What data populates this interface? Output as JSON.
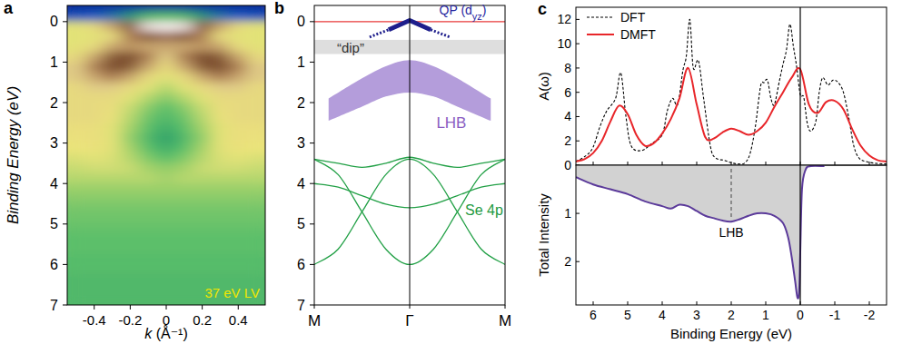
{
  "chart_data": [
    {
      "type": "heatmap",
      "panel_label": "a",
      "annotation": "37 eV LV",
      "xlabel": "k (Å⁻¹)",
      "ylabel": "Binding Energy (eV)",
      "xlim": [
        -0.55,
        0.55
      ],
      "ylim": [
        7,
        -0.4
      ],
      "xticks": [
        -0.4,
        -0.2,
        0,
        0.2,
        0.4
      ],
      "yticks": [
        0,
        1,
        2,
        3,
        4,
        5,
        6,
        7
      ],
      "zlim": [
        0,
        1
      ],
      "x": [
        -0.5,
        -0.4,
        -0.3,
        -0.2,
        -0.1,
        0,
        0.1,
        0.2,
        0.3,
        0.4,
        0.5
      ],
      "y": [
        -0.375,
        -0.125,
        0.125,
        0.375,
        0.625,
        0.875,
        1.125,
        1.375,
        1.625,
        1.875,
        2.125,
        2.375,
        2.625,
        2.875,
        3.125,
        3.375,
        3.625,
        3.875,
        4.125,
        4.375,
        4.625,
        4.875,
        5.125,
        5.375,
        5.625,
        5.875,
        6.125,
        6.375,
        6.625,
        6.875
      ],
      "cells": [
        [
          0.02,
          0.02,
          0.02,
          0.02,
          0.02,
          0.02,
          0.02,
          0.02,
          0.02,
          0.02,
          0.02
        ],
        [
          0.1,
          0.12,
          0.15,
          0.2,
          0.28,
          0.3,
          0.28,
          0.2,
          0.15,
          0.12,
          0.1
        ],
        [
          0.45,
          0.5,
          0.6,
          0.75,
          0.9,
          0.95,
          0.9,
          0.75,
          0.6,
          0.5,
          0.45
        ],
        [
          0.45,
          0.45,
          0.5,
          0.65,
          0.75,
          0.8,
          0.75,
          0.65,
          0.5,
          0.45,
          0.45
        ],
        [
          0.45,
          0.5,
          0.6,
          0.62,
          0.6,
          0.6,
          0.6,
          0.62,
          0.6,
          0.5,
          0.45
        ],
        [
          0.5,
          0.6,
          0.7,
          0.72,
          0.65,
          0.55,
          0.65,
          0.72,
          0.7,
          0.6,
          0.5
        ],
        [
          0.55,
          0.65,
          0.72,
          0.7,
          0.6,
          0.5,
          0.6,
          0.7,
          0.72,
          0.65,
          0.55
        ],
        [
          0.55,
          0.6,
          0.65,
          0.6,
          0.5,
          0.45,
          0.5,
          0.6,
          0.65,
          0.6,
          0.55
        ],
        [
          0.5,
          0.55,
          0.55,
          0.5,
          0.45,
          0.4,
          0.45,
          0.5,
          0.55,
          0.55,
          0.5
        ],
        [
          0.5,
          0.5,
          0.5,
          0.45,
          0.4,
          0.35,
          0.4,
          0.45,
          0.5,
          0.5,
          0.5
        ],
        [
          0.5,
          0.5,
          0.48,
          0.42,
          0.35,
          0.3,
          0.35,
          0.42,
          0.48,
          0.5,
          0.5
        ],
        [
          0.5,
          0.5,
          0.47,
          0.4,
          0.32,
          0.28,
          0.32,
          0.4,
          0.47,
          0.5,
          0.5
        ],
        [
          0.48,
          0.48,
          0.45,
          0.38,
          0.3,
          0.25,
          0.3,
          0.38,
          0.45,
          0.48,
          0.48
        ],
        [
          0.47,
          0.48,
          0.45,
          0.36,
          0.28,
          0.22,
          0.28,
          0.36,
          0.45,
          0.48,
          0.47
        ],
        [
          0.46,
          0.47,
          0.45,
          0.38,
          0.3,
          0.25,
          0.3,
          0.38,
          0.45,
          0.47,
          0.46
        ],
        [
          0.44,
          0.45,
          0.44,
          0.4,
          0.34,
          0.3,
          0.34,
          0.4,
          0.44,
          0.45,
          0.44
        ],
        [
          0.42,
          0.43,
          0.43,
          0.42,
          0.38,
          0.36,
          0.38,
          0.42,
          0.43,
          0.43,
          0.42
        ],
        [
          0.4,
          0.4,
          0.4,
          0.4,
          0.4,
          0.38,
          0.4,
          0.4,
          0.4,
          0.4,
          0.4
        ],
        [
          0.37,
          0.37,
          0.37,
          0.37,
          0.37,
          0.37,
          0.37,
          0.37,
          0.37,
          0.37,
          0.37
        ],
        [
          0.35,
          0.35,
          0.35,
          0.35,
          0.35,
          0.35,
          0.35,
          0.35,
          0.35,
          0.35,
          0.35
        ],
        [
          0.33,
          0.33,
          0.33,
          0.33,
          0.33,
          0.33,
          0.33,
          0.33,
          0.33,
          0.33,
          0.33
        ],
        [
          0.32,
          0.32,
          0.32,
          0.32,
          0.32,
          0.32,
          0.32,
          0.32,
          0.32,
          0.32,
          0.32
        ],
        [
          0.31,
          0.31,
          0.31,
          0.31,
          0.31,
          0.31,
          0.31,
          0.31,
          0.31,
          0.31,
          0.31
        ],
        [
          0.3,
          0.3,
          0.3,
          0.3,
          0.3,
          0.3,
          0.3,
          0.3,
          0.3,
          0.3,
          0.3
        ],
        [
          0.3,
          0.3,
          0.3,
          0.3,
          0.3,
          0.3,
          0.3,
          0.3,
          0.3,
          0.3,
          0.3
        ],
        [
          0.29,
          0.29,
          0.29,
          0.29,
          0.29,
          0.29,
          0.29,
          0.29,
          0.29,
          0.29,
          0.29
        ],
        [
          0.29,
          0.29,
          0.29,
          0.29,
          0.29,
          0.29,
          0.29,
          0.29,
          0.29,
          0.29,
          0.29
        ],
        [
          0.28,
          0.28,
          0.28,
          0.28,
          0.28,
          0.28,
          0.28,
          0.28,
          0.28,
          0.28,
          0.28
        ],
        [
          0.28,
          0.28,
          0.28,
          0.28,
          0.28,
          0.28,
          0.28,
          0.28,
          0.28,
          0.28,
          0.28
        ],
        [
          0.28,
          0.28,
          0.28,
          0.28,
          0.28,
          0.28,
          0.28,
          0.28,
          0.28,
          0.28,
          0.28
        ]
      ]
    },
    {
      "type": "schematic",
      "panel_label": "b",
      "xlim": [
        -1,
        1
      ],
      "ylim": [
        7,
        -0.4
      ],
      "xticks": [
        {
          "value": -1,
          "label": "M"
        },
        {
          "value": 0,
          "label": "Γ"
        },
        {
          "value": 1,
          "label": "M"
        }
      ],
      "yticks": [
        0,
        1,
        2,
        3,
        4,
        5,
        6,
        7
      ],
      "fermi_level": 0,
      "series": [
        {
          "type": "line",
          "label_parts": [
            "QP (d",
            "yz",
            ")"
          ],
          "color": "#1e1e8c",
          "x": [
            -0.22,
            0,
            0.22
          ],
          "values": [
            0.2,
            -0.03,
            0.2
          ]
        },
        {
          "type": "line",
          "line_style": "dashed",
          "color": "#1e1e8c",
          "x": [
            -0.42,
            -0.22
          ],
          "values": [
            0.38,
            0.2
          ]
        },
        {
          "type": "line",
          "line_style": "dashed",
          "color": "#1e1e8c",
          "x": [
            0.22,
            0.42
          ],
          "values": [
            0.2,
            0.38
          ]
        },
        {
          "type": "band",
          "label": "“dip”",
          "color": "#dedede",
          "values": [
            0.45,
            0.8
          ]
        },
        {
          "type": "area",
          "label": "LHB",
          "color": "#b49ddb",
          "x": [
            -0.85,
            -0.5,
            -0.25,
            0,
            0.25,
            0.5,
            0.85
          ],
          "upper": [
            1.9,
            1.4,
            1.1,
            0.95,
            1.1,
            1.4,
            1.9
          ],
          "lower": [
            2.45,
            2.1,
            1.85,
            1.75,
            1.85,
            2.1,
            2.45
          ]
        },
        {
          "type": "curves",
          "label": "Se 4p",
          "color": "#22a046",
          "x": [
            -1,
            -0.75,
            -0.5,
            -0.25,
            0,
            0.25,
            0.5,
            0.75,
            1
          ],
          "curves": [
            [
              3.4,
              3.78,
              4.7,
              5.62,
              6.0,
              5.62,
              4.7,
              3.78,
              3.4
            ],
            [
              6.0,
              5.62,
              4.7,
              3.78,
              3.4,
              3.78,
              4.7,
              5.62,
              6.0
            ],
            [
              4.0,
              4.09,
              4.3,
              4.51,
              4.6,
              4.51,
              4.3,
              4.09,
              4.0
            ],
            [
              3.4,
              3.5,
              3.6,
              3.5,
              3.35,
              3.5,
              3.6,
              3.5,
              3.4
            ]
          ]
        }
      ]
    },
    {
      "type": "line",
      "panel_label": "c",
      "ylabel": "A(ω)",
      "xlim": [
        6.5,
        -2.5
      ],
      "ylim": [
        0,
        13
      ],
      "xticks": [
        6,
        5,
        4,
        3,
        2,
        1,
        0,
        -1,
        -2
      ],
      "yticks": [
        0,
        2,
        4,
        6,
        8,
        10,
        12
      ],
      "tick_labels": "y",
      "legend": "top-left",
      "fermi_level": 0,
      "series": [
        {
          "name": "DFT",
          "color": "#000000",
          "line_style": "dashed",
          "x": [
            6.5,
            6.2,
            6.0,
            5.8,
            5.6,
            5.35,
            5.2,
            5.05,
            4.9,
            4.6,
            4.3,
            4.0,
            3.85,
            3.7,
            3.55,
            3.4,
            3.3,
            3.2,
            3.1,
            2.95,
            2.8,
            2.6,
            2.45,
            2.2,
            2.0,
            1.8,
            1.6,
            1.45,
            1.3,
            1.15,
            1.05,
            0.95,
            0.85,
            0.75,
            0.6,
            0.5,
            0.4,
            0.3,
            0.2,
            0.1,
            0.0,
            -0.1,
            -0.2,
            -0.3,
            -0.45,
            -0.55,
            -0.65,
            -0.8,
            -0.95,
            -1.1,
            -1.25,
            -1.4,
            -1.55,
            -1.7,
            -1.9,
            -2.2,
            -2.5
          ],
          "values": [
            0.3,
            0.8,
            1.5,
            3.2,
            4.5,
            5.5,
            7.6,
            4.0,
            1.6,
            1.2,
            1.8,
            2.5,
            4.5,
            5.5,
            5.0,
            7.8,
            9.0,
            12.0,
            8.0,
            8.6,
            5.5,
            1.5,
            0.6,
            0.4,
            0.2,
            0.1,
            0.2,
            1.0,
            3.2,
            6.5,
            6.8,
            7.0,
            5.5,
            5.0,
            7.0,
            8.3,
            9.5,
            11.6,
            9.8,
            8.0,
            5.8,
            5.6,
            3.5,
            2.8,
            3.6,
            6.0,
            7.2,
            6.6,
            7.0,
            6.8,
            6.0,
            4.0,
            1.6,
            0.6,
            0.3,
            0.15,
            0.1
          ]
        },
        {
          "name": "DMFT",
          "color": "#e8262a",
          "line_style": "solid",
          "x": [
            6.5,
            6.25,
            6.0,
            5.75,
            5.5,
            5.25,
            5.0,
            4.75,
            4.5,
            4.25,
            4.0,
            3.75,
            3.5,
            3.25,
            3.0,
            2.75,
            2.5,
            2.25,
            2.0,
            1.75,
            1.5,
            1.25,
            1.0,
            0.75,
            0.5,
            0.25,
            0.0,
            -0.25,
            -0.5,
            -0.75,
            -1.0,
            -1.25,
            -1.5,
            -1.75,
            -2.0,
            -2.25,
            -2.5
          ],
          "values": [
            0.3,
            0.5,
            1.0,
            2.0,
            3.6,
            4.9,
            4.2,
            2.5,
            1.6,
            1.8,
            2.6,
            3.8,
            5.5,
            8.0,
            5.0,
            2.3,
            2.2,
            2.7,
            3.0,
            2.8,
            2.5,
            2.8,
            3.5,
            4.8,
            6.0,
            7.2,
            7.9,
            5.0,
            4.3,
            5.2,
            5.3,
            4.6,
            3.0,
            1.6,
            0.8,
            0.4,
            0.3
          ]
        }
      ]
    },
    {
      "type": "area",
      "ylabel": "Total Intensity",
      "xlabel": "Binding Energy (eV)",
      "xlim": [
        6.5,
        -2.5
      ],
      "ylim": [
        2.9,
        0
      ],
      "xticks": [
        6,
        5,
        4,
        3,
        2,
        1,
        0,
        -1,
        -2
      ],
      "yticks": [
        1,
        2
      ],
      "fermi_level": 0,
      "color": "#5b3a9a",
      "x": [
        6.5,
        6.0,
        5.5,
        5.0,
        4.5,
        4.0,
        3.75,
        3.5,
        3.25,
        3.0,
        2.75,
        2.5,
        2.25,
        2.0,
        1.75,
        1.5,
        1.25,
        1.0,
        0.75,
        0.5,
        0.35,
        0.25,
        0.15,
        0.08,
        0.03,
        0.0,
        -0.05,
        -0.15,
        -0.3,
        -0.7
      ],
      "values": [
        0.25,
        0.4,
        0.5,
        0.6,
        0.75,
        0.85,
        0.9,
        0.82,
        0.85,
        0.95,
        1.05,
        1.1,
        1.15,
        1.17,
        1.12,
        1.05,
        1.0,
        1.0,
        1.05,
        1.2,
        1.5,
        1.9,
        2.4,
        2.75,
        2.6,
        1.8,
        0.5,
        0.1,
        0.02,
        0.02
      ],
      "annotation": {
        "text": "LHB",
        "x": 2,
        "y": 1.17
      }
    }
  ]
}
